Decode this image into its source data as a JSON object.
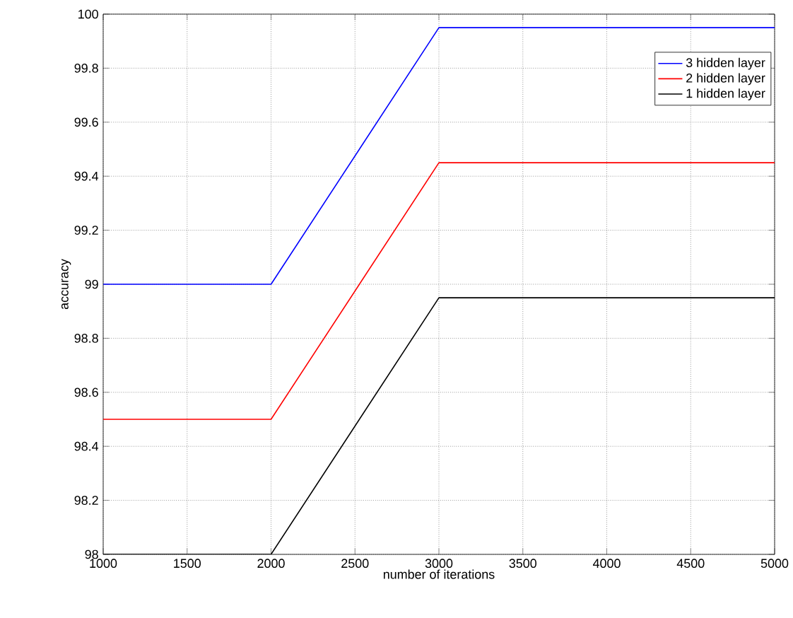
{
  "chart_data": {
    "type": "line",
    "xlabel": "number of iterations",
    "ylabel": "accuracy",
    "x": [
      1000,
      2000,
      3000,
      5000
    ],
    "series": [
      {
        "name": "3 hidden layer",
        "color": "#0000ff",
        "values": [
          99,
          99,
          99.95,
          99.95
        ]
      },
      {
        "name": "2 hidden layer",
        "color": "#ff0000",
        "values": [
          98.5,
          98.5,
          99.45,
          99.45
        ]
      },
      {
        "name": "1 hidden layer",
        "color": "#000000",
        "values": [
          98,
          98,
          98.95,
          98.95
        ]
      }
    ],
    "xlim": [
      1000,
      5000
    ],
    "ylim": [
      98,
      100
    ],
    "xticks": [
      1000,
      1500,
      2000,
      2500,
      3000,
      3500,
      4000,
      4500,
      5000
    ],
    "yticks": [
      98,
      98.2,
      98.4,
      98.6,
      98.8,
      99,
      99.2,
      99.4,
      99.6,
      99.8,
      100
    ],
    "grid": true,
    "legend": "top right",
    "marker": "none",
    "line_style": "solid"
  }
}
